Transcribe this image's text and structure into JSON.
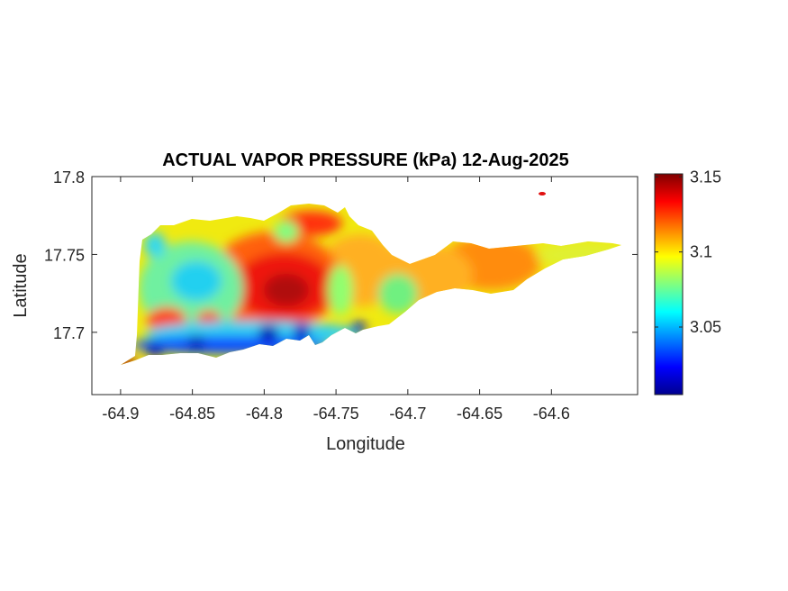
{
  "chart_data": {
    "type": "heatmap",
    "title": "ACTUAL VAPOR PRESSURE (kPa) 12-Aug-2025",
    "xlabel": "Longitude",
    "ylabel": "Latitude",
    "xlim": [
      -64.92,
      -64.54
    ],
    "ylim": [
      17.66,
      17.8
    ],
    "xticks": [
      -64.9,
      -64.85,
      -64.8,
      -64.75,
      -64.7,
      -64.65,
      -64.6
    ],
    "xtick_labels": [
      "-64.9",
      "-64.85",
      "-64.8",
      "-64.75",
      "-64.7",
      "-64.65",
      "-64.6"
    ],
    "yticks": [
      17.7,
      17.75,
      17.8
    ],
    "ytick_labels": [
      "17.7",
      "17.75",
      "17.8"
    ],
    "colorbar": {
      "colormap": "jet",
      "range": [
        3.005,
        3.152
      ],
      "ticks": [
        3.05,
        3.1,
        3.15
      ],
      "tick_labels": [
        "3.05",
        "3.1",
        "3.15"
      ]
    },
    "grid": false,
    "hotspots": [
      {
        "name": "central high",
        "lon": -64.79,
        "lat": 17.728,
        "value": 3.148
      },
      {
        "name": "east-central high",
        "lon": -64.66,
        "lat": 17.74,
        "value": 3.125
      },
      {
        "name": "southwest tip",
        "lon": -64.9,
        "lat": 17.68,
        "value": 3.15
      },
      {
        "name": "west low",
        "lon": -64.855,
        "lat": 17.735,
        "value": 3.06
      },
      {
        "name": "south coast low",
        "lon": -64.8,
        "lat": 17.7,
        "value": 3.01
      }
    ]
  }
}
